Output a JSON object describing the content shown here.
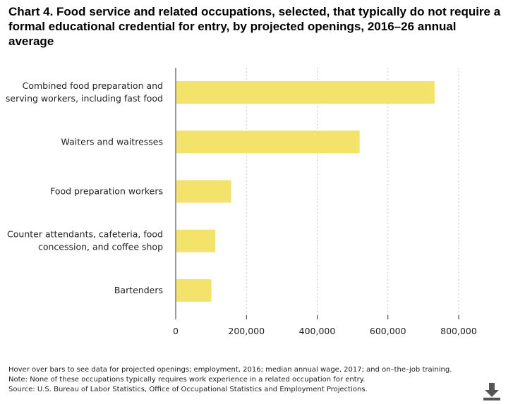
{
  "chart_data": {
    "type": "bar",
    "orientation": "horizontal",
    "title": "Chart 4. Food service and related occupations, selected, that typically do not require a formal educational credential for entry, by projected openings, 2016–26 annual average",
    "categories": [
      [
        "Combined food preparation and",
        "serving workers, including fast food"
      ],
      [
        "Waiters and waitresses"
      ],
      [
        "Food preparation workers"
      ],
      [
        "Counter attendants, cafeteria, food",
        "concession, and coffee shop"
      ],
      [
        "Bartenders"
      ]
    ],
    "values": [
      732000,
      520000,
      157000,
      112000,
      101000
    ],
    "xlim": [
      0,
      800000
    ],
    "xticks": [
      0,
      200000,
      400000,
      600000,
      800000
    ],
    "xtick_labels": [
      "0",
      "200,000",
      "400,000",
      "600,000",
      "800,000"
    ],
    "grid": "vertical dotted",
    "bar_color": "#f3e36a"
  },
  "footnotes": {
    "hover": "Hover over bars to see data for projected openings; employment, 2016; median annual wage, 2017; and on–the–job training.",
    "note": "Note: None of these occupations typically requires work experience in a related occupation for entry.",
    "source": "Source: U.S. Bureau of Labor Statistics, Office of Occupational Statistics and Employment Projections."
  },
  "download": {
    "icon": "download-icon"
  }
}
